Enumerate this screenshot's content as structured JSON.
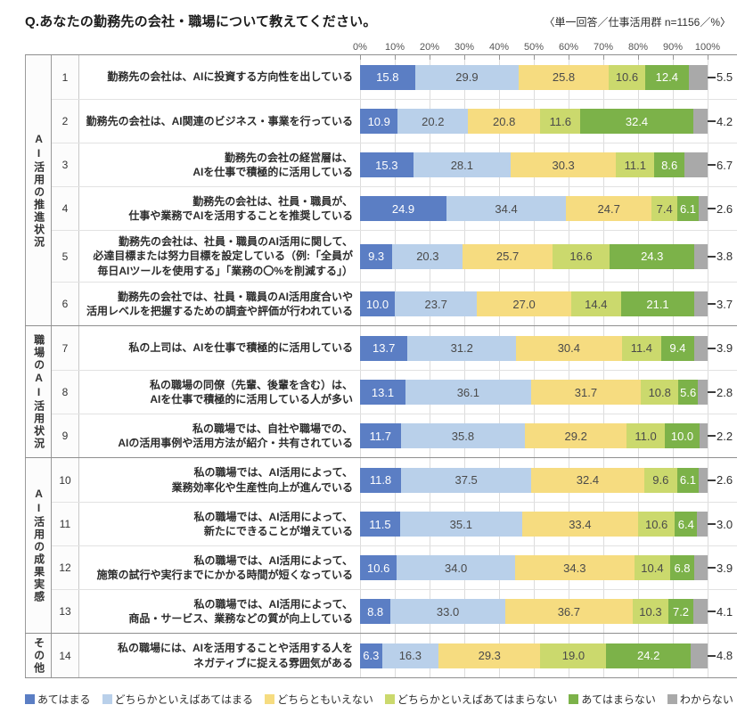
{
  "header": {
    "title": "Q.あなたの勤務先の会社・職場について教えてください。",
    "note": "〈単一回答／仕事活用群 n=1156／%〉"
  },
  "chart_data": {
    "type": "bar",
    "variant": "horizontal-stacked-100",
    "unit": "%",
    "sample": "n=1156",
    "xlim": [
      0,
      100
    ],
    "x_ticks": [
      "0%",
      "10%",
      "20%",
      "30%",
      "40%",
      "50%",
      "60%",
      "70%",
      "80%",
      "90%",
      "100%"
    ],
    "grid": true,
    "legend_position": "bottom",
    "series": [
      "あてはまる",
      "どちらかといえばあてはまる",
      "どちらともいえない",
      "どちらかといえばあてはまらない",
      "あてはまらない",
      "わからない"
    ],
    "series_colors": [
      "#5b7ec4",
      "#b9d0ea",
      "#f6dc80",
      "#cbd96d",
      "#7cb249",
      "#a9a9a9"
    ],
    "groups": [
      {
        "label": "AI活用の推進状況",
        "rows": [
          {
            "no": "1",
            "question": "勤務先の会社は、AIに投資する方向性を出している",
            "values": [
              15.8,
              29.9,
              25.8,
              10.6,
              12.4,
              5.5
            ]
          },
          {
            "no": "2",
            "question": "勤務先の会社は、AI関連のビジネス・事業を行っている",
            "values": [
              10.9,
              20.2,
              20.8,
              11.6,
              32.4,
              4.2
            ]
          },
          {
            "no": "3",
            "question": "勤務先の会社の経営層は、\nAIを仕事で積極的に活用している",
            "values": [
              15.3,
              28.1,
              30.3,
              11.1,
              8.6,
              6.7
            ]
          },
          {
            "no": "4",
            "question": "勤務先の会社は、社員・職員が、\n仕事や業務でAIを活用することを推奨している",
            "values": [
              24.9,
              34.4,
              24.7,
              7.4,
              6.1,
              2.6
            ]
          },
          {
            "no": "5",
            "question": "勤務先の会社は、社員・職員のAI活用に関して、\n必達目標または努力目標を設定している（例:「全員が\n毎日AIツールを使用する」「業務の〇%を削減する」）",
            "values": [
              9.3,
              20.3,
              25.7,
              16.6,
              24.3,
              3.8
            ]
          },
          {
            "no": "6",
            "question": "勤務先の会社では、社員・職員のAI活用度合いや\n活用レベルを把握するための調査や評価が行われている",
            "values": [
              10.0,
              23.7,
              27.0,
              14.4,
              21.1,
              3.7
            ]
          }
        ]
      },
      {
        "label": "職場のAI活用状況",
        "rows": [
          {
            "no": "7",
            "question": "私の上司は、AIを仕事で積極的に活用している",
            "values": [
              13.7,
              31.2,
              30.4,
              11.4,
              9.4,
              3.9
            ]
          },
          {
            "no": "8",
            "question": "私の職場の同僚（先輩、後輩を含む）は、\nAIを仕事で積極的に活用している人が多い",
            "values": [
              13.1,
              36.1,
              31.7,
              10.8,
              5.6,
              2.8
            ]
          },
          {
            "no": "9",
            "question": "私の職場では、自社や職場での、\nAIの活用事例や活用方法が紹介・共有されている",
            "values": [
              11.7,
              35.8,
              29.2,
              11.0,
              10.0,
              2.2
            ]
          }
        ]
      },
      {
        "label": "AI活用の成果実感",
        "rows": [
          {
            "no": "10",
            "question": "私の職場では、AI活用によって、\n業務効率化や生産性向上が進んでいる",
            "values": [
              11.8,
              37.5,
              32.4,
              9.6,
              6.1,
              2.6
            ]
          },
          {
            "no": "11",
            "question": "私の職場では、AI活用によって、\n新たにできることが増えている",
            "values": [
              11.5,
              35.1,
              33.4,
              10.6,
              6.4,
              3.0
            ]
          },
          {
            "no": "12",
            "question": "私の職場では、AI活用によって、\n施策の試行や実行までにかかる時間が短くなっている",
            "values": [
              10.6,
              34.0,
              34.3,
              10.4,
              6.8,
              3.9
            ]
          },
          {
            "no": "13",
            "question": "私の職場では、AI活用によって、\n商品・サービス、業務などの質が向上している",
            "values": [
              8.8,
              33.0,
              36.7,
              10.3,
              7.2,
              4.1
            ]
          }
        ]
      },
      {
        "label": "その他",
        "rows": [
          {
            "no": "14",
            "question": "私の職場には、AIを活用することや活用する人を\nネガティブに捉える雰囲気がある",
            "values": [
              6.3,
              16.3,
              29.3,
              19.0,
              24.2,
              4.8
            ]
          }
        ]
      }
    ]
  }
}
